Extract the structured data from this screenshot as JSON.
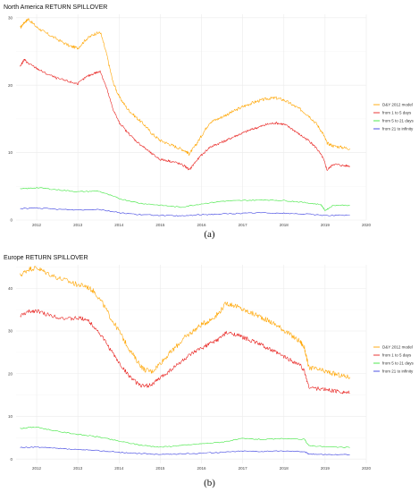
{
  "captions": [
    "(a)",
    "(b)"
  ],
  "chart_data": [
    {
      "type": "line",
      "title": "North America RETURN SPILLOVER",
      "xlabel": "",
      "ylabel": "",
      "xlim": [
        2011.5,
        2020.0
      ],
      "ylim": [
        0,
        30.5
      ],
      "xticks": [
        "2012",
        "2013",
        "2014",
        "2015",
        "2016",
        "2017",
        "2018",
        "2019",
        "2020"
      ],
      "yticks": [
        "0",
        "10",
        "20",
        "30"
      ],
      "legend_position": "right",
      "grid": true,
      "series": [
        {
          "name": "D&Y 2012 model",
          "color": "#FFA500",
          "x": [
            2011.6,
            2011.7,
            2011.8,
            2012.0,
            2012.2,
            2012.5,
            2012.8,
            2013.0,
            2013.2,
            2013.4,
            2013.55,
            2013.7,
            2013.85,
            2014.0,
            2014.2,
            2014.4,
            2014.6,
            2014.8,
            2015.0,
            2015.2,
            2015.4,
            2015.6,
            2015.7,
            2015.85,
            2016.0,
            2016.2,
            2016.4,
            2016.6,
            2016.8,
            2017.0,
            2017.2,
            2017.4,
            2017.6,
            2017.8,
            2018.0,
            2018.2,
            2018.4,
            2018.6,
            2018.8,
            2018.95,
            2019.05,
            2019.2,
            2019.4,
            2019.6
          ],
          "y": [
            28.5,
            29.3,
            29.8,
            28.6,
            27.8,
            26.8,
            25.8,
            25.5,
            26.8,
            27.6,
            27.8,
            24.5,
            20.5,
            18.3,
            16.5,
            15.3,
            14.2,
            12.8,
            11.8,
            11.3,
            10.8,
            10.3,
            9.8,
            11.0,
            12.5,
            14.5,
            15.0,
            15.6,
            16.2,
            16.8,
            17.3,
            17.7,
            18.0,
            18.1,
            17.8,
            17.1,
            16.4,
            15.5,
            14.2,
            12.8,
            11.4,
            11.0,
            10.8,
            10.6
          ]
        },
        {
          "name": "from 1 to 5 days",
          "color": "#E8211E",
          "x": [
            2011.6,
            2011.7,
            2011.8,
            2012.0,
            2012.2,
            2012.5,
            2012.8,
            2013.0,
            2013.2,
            2013.4,
            2013.55,
            2013.7,
            2013.85,
            2014.0,
            2014.2,
            2014.4,
            2014.6,
            2014.8,
            2015.0,
            2015.2,
            2015.4,
            2015.6,
            2015.7,
            2015.85,
            2016.0,
            2016.2,
            2016.4,
            2016.6,
            2016.8,
            2017.0,
            2017.2,
            2017.4,
            2017.6,
            2017.8,
            2018.0,
            2018.2,
            2018.4,
            2018.6,
            2018.8,
            2018.95,
            2019.05,
            2019.2,
            2019.4,
            2019.6
          ],
          "y": [
            22.8,
            23.8,
            23.2,
            22.5,
            21.8,
            21.0,
            20.5,
            20.2,
            21.2,
            21.8,
            22.0,
            19.5,
            16.5,
            14.5,
            13.0,
            11.8,
            10.8,
            9.8,
            9.0,
            8.8,
            8.5,
            8.0,
            7.4,
            8.6,
            9.6,
            10.8,
            11.3,
            11.8,
            12.4,
            12.9,
            13.4,
            13.8,
            14.2,
            14.4,
            14.2,
            13.5,
            12.6,
            11.8,
            10.6,
            9.2,
            7.4,
            8.3,
            8.1,
            8.0
          ]
        },
        {
          "name": "from 5 to 21 days",
          "color": "#3CE63C",
          "x": [
            2011.6,
            2012.0,
            2012.5,
            2013.0,
            2013.5,
            2014.0,
            2014.5,
            2015.0,
            2015.5,
            2016.0,
            2016.5,
            2017.0,
            2017.5,
            2018.0,
            2018.5,
            2018.9,
            2019.0,
            2019.2,
            2019.6
          ],
          "y": [
            4.6,
            4.8,
            4.5,
            4.2,
            4.3,
            3.2,
            2.5,
            2.2,
            1.9,
            2.4,
            2.8,
            2.9,
            3.0,
            2.9,
            2.6,
            2.3,
            1.4,
            2.2,
            2.2
          ]
        },
        {
          "name": "from 21 to infinity",
          "color": "#3A3FE0",
          "x": [
            2011.6,
            2012.0,
            2012.5,
            2013.0,
            2013.5,
            2014.0,
            2014.5,
            2015.0,
            2015.5,
            2016.0,
            2016.5,
            2017.0,
            2017.5,
            2018.0,
            2018.5,
            2019.0,
            2019.6
          ],
          "y": [
            1.7,
            1.8,
            1.6,
            1.5,
            1.6,
            1.1,
            0.8,
            0.7,
            0.6,
            0.8,
            0.9,
            1.0,
            1.1,
            1.0,
            0.9,
            0.7,
            0.7
          ]
        }
      ]
    },
    {
      "type": "line",
      "title": "Europe RETURN SPILLOVER",
      "xlabel": "",
      "ylabel": "",
      "xlim": [
        2011.5,
        2020.0
      ],
      "ylim": [
        -1,
        45.5
      ],
      "xticks": [
        "2012",
        "2013",
        "2014",
        "2015",
        "2016",
        "2017",
        "2018",
        "2019",
        "2020"
      ],
      "yticks": [
        "0",
        "10",
        "20",
        "30",
        "40"
      ],
      "legend_position": "right",
      "grid": true,
      "series": [
        {
          "name": "D&Y 2012 model",
          "color": "#FFA500",
          "x": [
            2011.6,
            2011.8,
            2012.0,
            2012.2,
            2012.5,
            2012.8,
            2013.0,
            2013.2,
            2013.4,
            2013.6,
            2013.8,
            2014.0,
            2014.2,
            2014.4,
            2014.6,
            2014.8,
            2015.0,
            2015.2,
            2015.4,
            2015.6,
            2015.8,
            2016.0,
            2016.2,
            2016.4,
            2016.6,
            2016.8,
            2017.0,
            2017.2,
            2017.4,
            2017.6,
            2017.8,
            2018.0,
            2018.2,
            2018.4,
            2018.5,
            2018.6,
            2018.8,
            2019.0,
            2019.2,
            2019.4,
            2019.6
          ],
          "y": [
            43.0,
            44.5,
            44.8,
            43.8,
            42.5,
            41.5,
            40.8,
            40.5,
            39.2,
            36.5,
            33.0,
            30.0,
            26.5,
            23.5,
            21.0,
            20.5,
            22.5,
            24.5,
            26.5,
            28.5,
            30.0,
            31.5,
            32.5,
            34.0,
            36.5,
            36.0,
            35.0,
            34.2,
            33.5,
            32.5,
            31.5,
            30.2,
            28.8,
            27.5,
            26.0,
            21.5,
            21.0,
            20.5,
            20.0,
            19.5,
            19.2
          ]
        },
        {
          "name": "from 1 to 5 days",
          "color": "#E8211E",
          "x": [
            2011.6,
            2011.8,
            2012.0,
            2012.2,
            2012.5,
            2012.8,
            2013.0,
            2013.2,
            2013.4,
            2013.6,
            2013.8,
            2014.0,
            2014.2,
            2014.4,
            2014.6,
            2014.8,
            2015.0,
            2015.2,
            2015.4,
            2015.6,
            2015.8,
            2016.0,
            2016.2,
            2016.4,
            2016.6,
            2016.8,
            2017.0,
            2017.2,
            2017.4,
            2017.6,
            2017.8,
            2018.0,
            2018.2,
            2018.4,
            2018.5,
            2018.6,
            2018.8,
            2019.0,
            2019.2,
            2019.4,
            2019.6
          ],
          "y": [
            33.5,
            34.5,
            34.8,
            34.0,
            33.3,
            32.8,
            33.0,
            32.8,
            31.0,
            28.5,
            25.5,
            22.5,
            20.0,
            18.0,
            17.0,
            17.5,
            19.0,
            20.5,
            22.0,
            23.5,
            24.8,
            26.0,
            27.0,
            28.0,
            29.5,
            29.3,
            28.5,
            27.8,
            27.0,
            26.0,
            25.0,
            24.0,
            23.0,
            22.0,
            20.5,
            17.0,
            16.5,
            16.3,
            16.0,
            15.8,
            15.5
          ]
        },
        {
          "name": "from 5 to 21 days",
          "color": "#3CE63C",
          "x": [
            2011.6,
            2012.0,
            2012.5,
            2013.0,
            2013.5,
            2014.0,
            2014.5,
            2015.0,
            2015.5,
            2016.0,
            2016.5,
            2017.0,
            2017.5,
            2018.0,
            2018.5,
            2018.6,
            2019.0,
            2019.6
          ],
          "y": [
            7.2,
            7.5,
            6.5,
            5.8,
            5.2,
            4.2,
            3.3,
            2.8,
            3.2,
            3.6,
            4.0,
            4.8,
            4.6,
            4.8,
            4.6,
            3.2,
            2.9,
            2.7
          ]
        },
        {
          "name": "from 21 to infinity",
          "color": "#3A3FE0",
          "x": [
            2011.6,
            2012.0,
            2012.5,
            2013.0,
            2013.5,
            2014.0,
            2014.5,
            2015.0,
            2015.5,
            2016.0,
            2016.5,
            2017.0,
            2017.5,
            2018.0,
            2018.5,
            2018.6,
            2019.0,
            2019.6
          ],
          "y": [
            2.7,
            2.8,
            2.5,
            2.2,
            2.0,
            1.6,
            1.3,
            1.1,
            1.2,
            1.4,
            1.6,
            1.9,
            1.8,
            1.9,
            1.8,
            1.2,
            1.1,
            1.0
          ]
        }
      ]
    }
  ]
}
